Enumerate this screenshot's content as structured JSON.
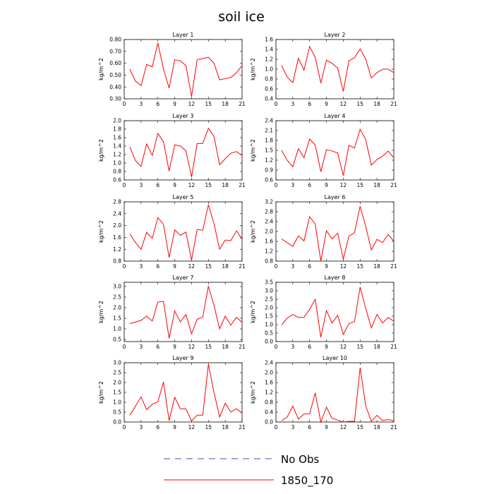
{
  "figure": {
    "title": "soil ice",
    "legend": [
      {
        "label": "No Obs",
        "color": "#4a4ab0",
        "dashed": true
      },
      {
        "label": "1850_170",
        "color": "#ff0000",
        "dashed": false
      }
    ]
  },
  "chart_data": [
    {
      "type": "line",
      "title": "Layer 1",
      "ylabel": "kg/m^2",
      "xlim": [
        0,
        21
      ],
      "xticks": [
        0,
        3,
        6,
        9,
        12,
        15,
        18,
        21
      ],
      "xticklabels": [
        "0",
        "3",
        "6",
        "9",
        "12",
        "15",
        "18",
        "21"
      ],
      "ylim": [
        0.3,
        0.8
      ],
      "yticks": [
        0.3,
        0.4,
        0.5,
        0.6,
        0.7,
        0.8
      ],
      "yticklabels": [
        "0.30",
        "0.40",
        "0.50",
        "0.60",
        "0.70",
        "0.80"
      ],
      "x": [
        1,
        2,
        3,
        4,
        5,
        6,
        7,
        8,
        9,
        10,
        11,
        12,
        13,
        14,
        15,
        16,
        17,
        18,
        19,
        20,
        21
      ],
      "series": [
        {
          "values": [
            0.55,
            0.45,
            0.41,
            0.59,
            0.57,
            0.77,
            0.55,
            0.39,
            0.63,
            0.62,
            0.58,
            0.32,
            0.63,
            0.64,
            0.65,
            0.6,
            0.46,
            0.47,
            0.48,
            0.52,
            0.58
          ]
        }
      ]
    },
    {
      "type": "line",
      "title": "Layer 2",
      "ylabel": "kg/m^2",
      "xlim": [
        0,
        21
      ],
      "xticks": [
        0,
        3,
        6,
        9,
        12,
        15,
        18,
        21
      ],
      "xticklabels": [
        "0",
        "3",
        "6",
        "9",
        "12",
        "15",
        "18",
        "21"
      ],
      "ylim": [
        0.4,
        1.6
      ],
      "yticks": [
        0.4,
        0.6,
        0.8,
        1.0,
        1.2,
        1.4,
        1.6
      ],
      "yticklabels": [
        "0.4",
        "0.6",
        "0.8",
        "1.0",
        "1.2",
        "1.4",
        "1.6"
      ],
      "x": [
        1,
        2,
        3,
        4,
        5,
        6,
        7,
        8,
        9,
        10,
        11,
        12,
        13,
        14,
        15,
        16,
        17,
        18,
        19,
        20,
        21
      ],
      "series": [
        {
          "values": [
            1.08,
            0.84,
            0.73,
            1.22,
            0.98,
            1.46,
            1.24,
            0.72,
            1.18,
            1.12,
            1.02,
            0.55,
            1.17,
            1.23,
            1.41,
            1.2,
            0.82,
            0.93,
            1.0,
            1.0,
            0.93
          ]
        }
      ]
    },
    {
      "type": "line",
      "title": "Layer 3",
      "ylabel": "kg/m^2",
      "xlim": [
        0,
        21
      ],
      "xticks": [
        0,
        3,
        6,
        9,
        12,
        15,
        18,
        21
      ],
      "xticklabels": [
        "0",
        "3",
        "6",
        "9",
        "12",
        "15",
        "18",
        "21"
      ],
      "ylim": [
        0.6,
        2.0
      ],
      "yticks": [
        0.6,
        0.8,
        1.0,
        1.2,
        1.4,
        1.6,
        1.8,
        2.0
      ],
      "yticklabels": [
        "0.6",
        "0.8",
        "1.0",
        "1.2",
        "1.4",
        "1.6",
        "1.8",
        "2.0"
      ],
      "x": [
        1,
        2,
        3,
        4,
        5,
        6,
        7,
        8,
        9,
        10,
        11,
        12,
        13,
        14,
        15,
        16,
        17,
        18,
        19,
        20,
        21
      ],
      "series": [
        {
          "values": [
            1.38,
            1.06,
            0.92,
            1.45,
            1.18,
            1.7,
            1.5,
            0.81,
            1.43,
            1.4,
            1.29,
            0.67,
            1.46,
            1.46,
            1.82,
            1.63,
            0.96,
            1.1,
            1.23,
            1.27,
            1.18
          ]
        }
      ]
    },
    {
      "type": "line",
      "title": "Layer 4",
      "ylabel": "kg/m^2",
      "xlim": [
        0,
        21
      ],
      "xticks": [
        0,
        3,
        6,
        9,
        12,
        15,
        18,
        21
      ],
      "xticklabels": [
        "0",
        "3",
        "6",
        "9",
        "12",
        "15",
        "18",
        "21"
      ],
      "ylim": [
        0.6,
        2.4
      ],
      "yticks": [
        0.6,
        0.9,
        1.2,
        1.5,
        1.8,
        2.1,
        2.4
      ],
      "yticklabels": [
        "0.6",
        "0.9",
        "1.2",
        "1.5",
        "1.8",
        "2.1",
        "2.4"
      ],
      "x": [
        1,
        2,
        3,
        4,
        5,
        6,
        7,
        8,
        9,
        10,
        11,
        12,
        13,
        14,
        15,
        16,
        17,
        18,
        19,
        20,
        21
      ],
      "series": [
        {
          "values": [
            1.5,
            1.2,
            1.0,
            1.55,
            1.28,
            1.84,
            1.66,
            0.85,
            1.52,
            1.48,
            1.42,
            0.73,
            1.65,
            1.57,
            2.14,
            1.82,
            1.05,
            1.22,
            1.32,
            1.48,
            1.27
          ]
        }
      ]
    },
    {
      "type": "line",
      "title": "Layer 5",
      "ylabel": "kg/m^2",
      "xlim": [
        0,
        21
      ],
      "xticks": [
        0,
        3,
        6,
        9,
        12,
        15,
        18,
        21
      ],
      "xticklabels": [
        "0",
        "3",
        "6",
        "9",
        "12",
        "15",
        "18",
        "21"
      ],
      "ylim": [
        0.8,
        2.8
      ],
      "yticks": [
        0.8,
        1.2,
        1.6,
        2.0,
        2.4,
        2.8
      ],
      "yticklabels": [
        "0.8",
        "1.2",
        "1.6",
        "2.0",
        "2.4",
        "2.8"
      ],
      "x": [
        1,
        2,
        3,
        4,
        5,
        6,
        7,
        8,
        9,
        10,
        11,
        12,
        13,
        14,
        15,
        16,
        17,
        18,
        19,
        20,
        21
      ],
      "series": [
        {
          "values": [
            1.72,
            1.43,
            1.2,
            1.77,
            1.57,
            2.27,
            2.04,
            0.92,
            1.85,
            1.67,
            1.78,
            0.83,
            1.87,
            1.84,
            2.7,
            2.06,
            1.2,
            1.51,
            1.49,
            1.82,
            1.54
          ]
        }
      ]
    },
    {
      "type": "line",
      "title": "Layer 6",
      "ylabel": "kg/m^2",
      "xlim": [
        0,
        21
      ],
      "xticks": [
        0,
        3,
        6,
        9,
        12,
        15,
        18,
        21
      ],
      "xticklabels": [
        "0",
        "3",
        "6",
        "9",
        "12",
        "15",
        "18",
        "21"
      ],
      "ylim": [
        0.8,
        3.2
      ],
      "yticks": [
        0.8,
        1.2,
        1.6,
        2.0,
        2.4,
        2.8,
        3.2
      ],
      "yticklabels": [
        "0.8",
        "1.2",
        "1.6",
        "2.0",
        "2.4",
        "2.8",
        "3.2"
      ],
      "x": [
        1,
        2,
        3,
        4,
        5,
        6,
        7,
        8,
        9,
        10,
        11,
        12,
        13,
        14,
        15,
        16,
        17,
        18,
        19,
        20,
        21
      ],
      "series": [
        {
          "values": [
            1.7,
            1.55,
            1.4,
            1.82,
            1.62,
            2.6,
            2.3,
            0.8,
            2.03,
            1.7,
            1.93,
            0.88,
            1.82,
            1.95,
            3.02,
            2.2,
            1.25,
            1.68,
            1.55,
            1.88,
            1.6
          ]
        }
      ]
    },
    {
      "type": "line",
      "title": "Layer 7",
      "ylabel": "kg/m^2",
      "xlim": [
        0,
        21
      ],
      "xticks": [
        0,
        3,
        6,
        9,
        12,
        15,
        18,
        21
      ],
      "xticklabels": [
        "0",
        "3",
        "6",
        "9",
        "12",
        "15",
        "18",
        "21"
      ],
      "ylim": [
        0.4,
        3.2
      ],
      "yticks": [
        0.5,
        1.0,
        1.5,
        2.0,
        2.5,
        3.0
      ],
      "yticklabels": [
        "0.5",
        "1.0",
        "1.5",
        "2.0",
        "2.5",
        "3.0"
      ],
      "x": [
        1,
        2,
        3,
        4,
        5,
        6,
        7,
        8,
        9,
        10,
        11,
        12,
        13,
        14,
        15,
        16,
        17,
        18,
        19,
        20,
        21
      ],
      "series": [
        {
          "values": [
            1.25,
            1.32,
            1.4,
            1.6,
            1.37,
            2.27,
            2.3,
            0.55,
            1.85,
            1.33,
            1.68,
            0.77,
            1.45,
            1.56,
            3.02,
            2.1,
            1.0,
            1.6,
            1.17,
            1.55,
            1.3
          ]
        }
      ]
    },
    {
      "type": "line",
      "title": "Layer 8",
      "ylabel": "kg/m^2",
      "xlim": [
        0,
        21
      ],
      "xticks": [
        0,
        3,
        6,
        9,
        12,
        15,
        18,
        21
      ],
      "xticklabels": [
        "0",
        "3",
        "6",
        "9",
        "12",
        "15",
        "18",
        "21"
      ],
      "ylim": [
        0.0,
        3.5
      ],
      "yticks": [
        0.0,
        0.5,
        1.0,
        1.5,
        2.0,
        2.5,
        3.0,
        3.5
      ],
      "yticklabels": [
        "0.0",
        "0.5",
        "1.0",
        "1.5",
        "2.0",
        "2.5",
        "3.0",
        "3.5"
      ],
      "x": [
        1,
        2,
        3,
        4,
        5,
        6,
        7,
        8,
        9,
        10,
        11,
        12,
        13,
        14,
        15,
        16,
        17,
        18,
        19,
        20,
        21
      ],
      "series": [
        {
          "values": [
            0.97,
            1.38,
            1.6,
            1.42,
            1.43,
            1.9,
            2.5,
            0.25,
            1.83,
            1.1,
            1.55,
            0.42,
            1.05,
            1.18,
            3.22,
            1.95,
            0.8,
            1.6,
            1.1,
            1.42,
            1.2
          ]
        }
      ]
    },
    {
      "type": "line",
      "title": "Layer 9",
      "ylabel": "kg/m^2",
      "xlim": [
        0,
        21
      ],
      "xticks": [
        0,
        3,
        6,
        9,
        12,
        15,
        18,
        21
      ],
      "xticklabels": [
        "0",
        "3",
        "6",
        "9",
        "12",
        "15",
        "18",
        "21"
      ],
      "ylim": [
        0.0,
        3.0
      ],
      "yticks": [
        0.0,
        0.5,
        1.0,
        1.5,
        2.0,
        2.5,
        3.0
      ],
      "yticklabels": [
        "0.0",
        "0.5",
        "1.0",
        "1.5",
        "2.0",
        "2.5",
        "3.0"
      ],
      "x": [
        1,
        2,
        3,
        4,
        5,
        6,
        7,
        8,
        9,
        10,
        11,
        12,
        13,
        14,
        15,
        16,
        17,
        18,
        19,
        20,
        21
      ],
      "series": [
        {
          "values": [
            0.35,
            0.8,
            1.27,
            0.62,
            0.9,
            1.02,
            2.03,
            0.07,
            1.25,
            0.67,
            0.66,
            0.05,
            0.35,
            0.35,
            2.92,
            1.5,
            0.25,
            0.95,
            0.5,
            0.67,
            0.45
          ]
        }
      ]
    },
    {
      "type": "line",
      "title": "Layer 10",
      "ylabel": "kg/m^2",
      "xlim": [
        0,
        21
      ],
      "xticks": [
        0,
        3,
        6,
        9,
        12,
        15,
        18,
        21
      ],
      "xticklabels": [
        "0",
        "3",
        "6",
        "9",
        "12",
        "15",
        "18",
        "21"
      ],
      "ylim": [
        0.0,
        2.4
      ],
      "yticks": [
        0.0,
        0.4,
        0.8,
        1.2,
        1.6,
        2.0,
        2.4
      ],
      "yticklabels": [
        "0.0",
        "0.4",
        "0.8",
        "1.2",
        "1.6",
        "2.0",
        "2.4"
      ],
      "x": [
        1,
        2,
        3,
        4,
        5,
        6,
        7,
        8,
        9,
        10,
        11,
        12,
        13,
        14,
        15,
        16,
        17,
        18,
        19,
        20,
        21
      ],
      "series": [
        {
          "values": [
            0.05,
            0.2,
            0.65,
            0.12,
            0.32,
            0.33,
            1.18,
            0.0,
            0.6,
            0.15,
            0.08,
            0.0,
            0.03,
            0.03,
            2.2,
            0.65,
            0.03,
            0.27,
            0.06,
            0.1,
            0.05
          ]
        }
      ]
    }
  ]
}
